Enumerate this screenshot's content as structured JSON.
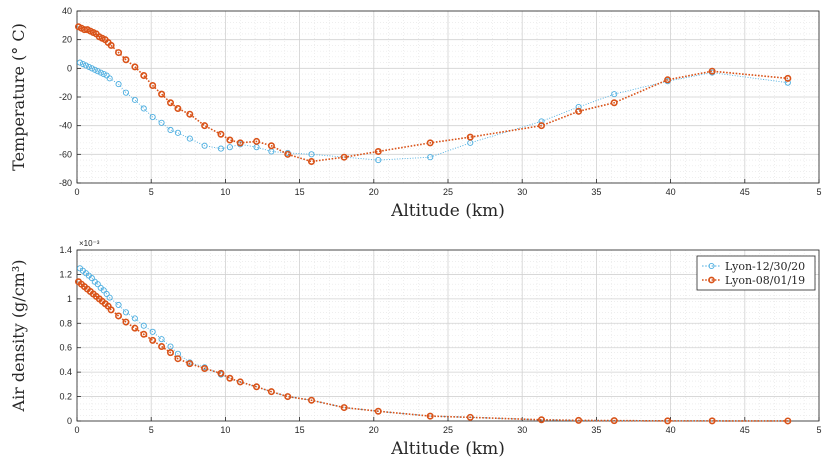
{
  "chart_data": [
    {
      "type": "line",
      "xlabel": "Altitude (km)",
      "ylabel": "Temperature (° C)",
      "xlim": [
        0,
        50
      ],
      "ylim": [
        -80,
        40
      ],
      "x_tick_labels": [
        "0",
        "5",
        "10",
        "15",
        "20",
        "25",
        "30",
        "35",
        "40",
        "45",
        "5"
      ],
      "y_tick_labels": [
        "-80",
        "-60",
        "-40",
        "-20",
        "0",
        "20",
        "40"
      ],
      "grid": true,
      "series": [
        {
          "name": "Lyon-12/30/20",
          "color": "#4daee0",
          "line_style": "dotted",
          "x": [
            0.2,
            0.4,
            0.6,
            0.8,
            1.0,
            1.2,
            1.4,
            1.6,
            1.8,
            2.0,
            2.2,
            2.8,
            3.3,
            3.9,
            4.5,
            5.1,
            5.7,
            6.3,
            6.8,
            7.6,
            8.6,
            9.7,
            10.3,
            11.0,
            12.1,
            13.1,
            14.2,
            15.8,
            20.3,
            23.8,
            26.5,
            31.3,
            33.8,
            36.2,
            39.8,
            42.8,
            47.9
          ],
          "y": [
            4,
            3,
            2,
            1,
            0,
            -1,
            -2,
            -3,
            -4,
            -5,
            -7,
            -11,
            -17,
            -22,
            -28,
            -34,
            -38,
            -43,
            -45,
            -49,
            -54,
            -56,
            -55,
            -53,
            -55,
            -58,
            -59,
            -60,
            -64,
            -62,
            -52,
            -37,
            -27,
            -18,
            -9,
            -3,
            -10
          ]
        },
        {
          "name": "Lyon-08/01/19",
          "color": "#d95319",
          "line_style": "dotted",
          "x": [
            0.1,
            0.3,
            0.5,
            0.7,
            0.9,
            1.1,
            1.3,
            1.5,
            1.7,
            1.9,
            2.1,
            2.3,
            2.8,
            3.3,
            3.9,
            4.5,
            5.1,
            5.7,
            6.3,
            6.8,
            7.6,
            8.6,
            9.7,
            10.3,
            11.0,
            12.1,
            13.1,
            14.2,
            15.8,
            18.0,
            20.3,
            23.8,
            26.5,
            31.3,
            33.8,
            36.2,
            39.8,
            42.8,
            47.9
          ],
          "y": [
            29,
            28,
            27,
            27,
            26,
            25,
            24,
            22,
            21,
            20,
            18,
            16,
            11,
            6,
            1,
            -5,
            -12,
            -18,
            -24,
            -28,
            -32,
            -40,
            -46,
            -50,
            -52,
            -51,
            -54,
            -60,
            -65,
            -62,
            -58,
            -52,
            -48,
            -40,
            -30,
            -24,
            -8,
            -2,
            -7
          ]
        }
      ]
    },
    {
      "type": "line",
      "xlabel": "Altitude (km)",
      "ylabel": "Air density (g/cm³)",
      "y_multiplier": "×10⁻³",
      "xlim": [
        0,
        50
      ],
      "ylim": [
        0,
        1.4
      ],
      "x_tick_labels": [
        "0",
        "5",
        "10",
        "15",
        "20",
        "25",
        "30",
        "35",
        "40",
        "45",
        "5"
      ],
      "y_tick_labels": [
        "0",
        "0.2",
        "0.4",
        "0.6",
        "0.8",
        "1",
        "1.2",
        "1.4"
      ],
      "grid": true,
      "legend_position": "top-right",
      "series": [
        {
          "name": "Lyon-12/30/20",
          "color": "#4daee0",
          "line_style": "dotted",
          "x": [
            0.2,
            0.4,
            0.6,
            0.8,
            1.0,
            1.2,
            1.4,
            1.6,
            1.8,
            2.0,
            2.2,
            2.8,
            3.3,
            3.9,
            4.5,
            5.1,
            5.7,
            6.3,
            6.8,
            7.6,
            8.6,
            9.7,
            10.3,
            11.0,
            12.1,
            13.1,
            14.2,
            15.8,
            18.0,
            20.3,
            23.8,
            26.5,
            31.3,
            33.8,
            36.2,
            39.8,
            42.8,
            47.9
          ],
          "y": [
            1.25,
            1.23,
            1.21,
            1.19,
            1.17,
            1.14,
            1.12,
            1.09,
            1.07,
            1.04,
            1.01,
            0.95,
            0.89,
            0.84,
            0.78,
            0.73,
            0.67,
            0.61,
            0.55,
            0.48,
            0.44,
            0.38,
            0.35,
            0.32,
            0.28,
            0.24,
            0.2,
            0.17,
            0.11,
            0.08,
            0.04,
            0.03,
            0.01,
            0.005,
            0.003,
            0.001,
            0.001,
            0.0005
          ]
        },
        {
          "name": "Lyon-08/01/19",
          "color": "#d95319",
          "line_style": "dotted",
          "x": [
            0.1,
            0.3,
            0.5,
            0.7,
            0.9,
            1.1,
            1.3,
            1.5,
            1.7,
            1.9,
            2.1,
            2.3,
            2.8,
            3.3,
            3.9,
            4.5,
            5.1,
            5.7,
            6.3,
            6.8,
            7.6,
            8.6,
            9.7,
            10.3,
            11.0,
            12.1,
            13.1,
            14.2,
            15.8,
            18.0,
            20.3,
            23.8,
            26.5,
            31.3,
            33.8,
            36.2,
            39.8,
            42.8,
            47.9
          ],
          "y": [
            1.14,
            1.12,
            1.1,
            1.08,
            1.06,
            1.04,
            1.02,
            1.0,
            0.98,
            0.96,
            0.94,
            0.91,
            0.86,
            0.81,
            0.76,
            0.71,
            0.66,
            0.61,
            0.56,
            0.51,
            0.47,
            0.43,
            0.39,
            0.35,
            0.32,
            0.28,
            0.24,
            0.2,
            0.17,
            0.11,
            0.08,
            0.04,
            0.03,
            0.01,
            0.005,
            0.003,
            0.001,
            0.001,
            0.0005
          ]
        }
      ]
    }
  ]
}
